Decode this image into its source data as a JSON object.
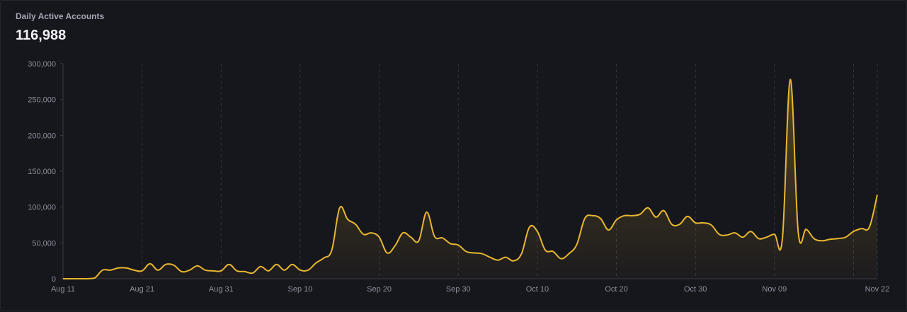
{
  "card": {
    "title": "Daily Active Accounts",
    "value": "116,988"
  },
  "colors": {
    "background": "#16161d",
    "line": "#e7b72e",
    "grid": "#33333f",
    "text": "#8c909b"
  },
  "chart_data": {
    "type": "area",
    "title": "Daily Active Accounts",
    "xlabel": "",
    "ylabel": "",
    "x_start": "Aug 11",
    "x_ticks": [
      "Aug 11",
      "Aug 21",
      "Aug 31",
      "Sep 10",
      "Sep 20",
      "Sep 30",
      "Oct 10",
      "Oct 20",
      "Oct 30",
      "Nov 09",
      "Nov 22"
    ],
    "y_ticks": [
      "0",
      "50,000",
      "100,000",
      "150,000",
      "200,000",
      "250,000",
      "300,000"
    ],
    "ylim": [
      0,
      300000
    ],
    "grid": "vertical dashed",
    "series": [
      {
        "values": [
          {
            "x": "Aug 11",
            "y": 0
          },
          {
            "x": "Aug 12",
            "y": 0
          },
          {
            "x": "Aug 13",
            "y": 0
          },
          {
            "x": "Aug 14",
            "y": 0
          },
          {
            "x": "Aug 15",
            "y": 1000
          },
          {
            "x": "Aug 16",
            "y": 12000
          },
          {
            "x": "Aug 17",
            "y": 12000
          },
          {
            "x": "Aug 18",
            "y": 15000
          },
          {
            "x": "Aug 19",
            "y": 15000
          },
          {
            "x": "Aug 20",
            "y": 12000
          },
          {
            "x": "Aug 21",
            "y": 11000
          },
          {
            "x": "Aug 22",
            "y": 21000
          },
          {
            "x": "Aug 23",
            "y": 12000
          },
          {
            "x": "Aug 24",
            "y": 20000
          },
          {
            "x": "Aug 25",
            "y": 19000
          },
          {
            "x": "Aug 26",
            "y": 10000
          },
          {
            "x": "Aug 27",
            "y": 12000
          },
          {
            "x": "Aug 28",
            "y": 18000
          },
          {
            "x": "Aug 29",
            "y": 12000
          },
          {
            "x": "Aug 30",
            "y": 11000
          },
          {
            "x": "Aug 31",
            "y": 11000
          },
          {
            "x": "Sep 1",
            "y": 20000
          },
          {
            "x": "Sep 2",
            "y": 11000
          },
          {
            "x": "Sep 3",
            "y": 10000
          },
          {
            "x": "Sep 4",
            "y": 8000
          },
          {
            "x": "Sep 5",
            "y": 17000
          },
          {
            "x": "Sep 6",
            "y": 11000
          },
          {
            "x": "Sep 7",
            "y": 20000
          },
          {
            "x": "Sep 8",
            "y": 12000
          },
          {
            "x": "Sep 9",
            "y": 20000
          },
          {
            "x": "Sep 10",
            "y": 12000
          },
          {
            "x": "Sep 11",
            "y": 12000
          },
          {
            "x": "Sep 12",
            "y": 22000
          },
          {
            "x": "Sep 13",
            "y": 29000
          },
          {
            "x": "Sep 14",
            "y": 40000
          },
          {
            "x": "Sep 15",
            "y": 99000
          },
          {
            "x": "Sep 16",
            "y": 83000
          },
          {
            "x": "Sep 17",
            "y": 76000
          },
          {
            "x": "Sep 18",
            "y": 62000
          },
          {
            "x": "Sep 19",
            "y": 64000
          },
          {
            "x": "Sep 20",
            "y": 58000
          },
          {
            "x": "Sep 21",
            "y": 36000
          },
          {
            "x": "Sep 22",
            "y": 46000
          },
          {
            "x": "Sep 23",
            "y": 64000
          },
          {
            "x": "Sep 24",
            "y": 58000
          },
          {
            "x": "Sep 25",
            "y": 53000
          },
          {
            "x": "Sep 26",
            "y": 93000
          },
          {
            "x": "Sep 27",
            "y": 59000
          },
          {
            "x": "Sep 28",
            "y": 57000
          },
          {
            "x": "Sep 29",
            "y": 49000
          },
          {
            "x": "Sep 30",
            "y": 47000
          },
          {
            "x": "Oct 1",
            "y": 38000
          },
          {
            "x": "Oct 2",
            "y": 36000
          },
          {
            "x": "Oct 3",
            "y": 35000
          },
          {
            "x": "Oct 4",
            "y": 30000
          },
          {
            "x": "Oct 5",
            "y": 26000
          },
          {
            "x": "Oct 6",
            "y": 30000
          },
          {
            "x": "Oct 7",
            "y": 25000
          },
          {
            "x": "Oct 8",
            "y": 35000
          },
          {
            "x": "Oct 9",
            "y": 72000
          },
          {
            "x": "Oct 10",
            "y": 66000
          },
          {
            "x": "Oct 11",
            "y": 40000
          },
          {
            "x": "Oct 12",
            "y": 38000
          },
          {
            "x": "Oct 13",
            "y": 28000
          },
          {
            "x": "Oct 14",
            "y": 35000
          },
          {
            "x": "Oct 15",
            "y": 48000
          },
          {
            "x": "Oct 16",
            "y": 84000
          },
          {
            "x": "Oct 17",
            "y": 88000
          },
          {
            "x": "Oct 18",
            "y": 84000
          },
          {
            "x": "Oct 19",
            "y": 68000
          },
          {
            "x": "Oct 20",
            "y": 82000
          },
          {
            "x": "Oct 21",
            "y": 88000
          },
          {
            "x": "Oct 22",
            "y": 88000
          },
          {
            "x": "Oct 23",
            "y": 90000
          },
          {
            "x": "Oct 24",
            "y": 99000
          },
          {
            "x": "Oct 25",
            "y": 86000
          },
          {
            "x": "Oct 26",
            "y": 95000
          },
          {
            "x": "Oct 27",
            "y": 76000
          },
          {
            "x": "Oct 28",
            "y": 76000
          },
          {
            "x": "Oct 29",
            "y": 87000
          },
          {
            "x": "Oct 30",
            "y": 78000
          },
          {
            "x": "Oct 31",
            "y": 78000
          },
          {
            "x": "Nov 1",
            "y": 75000
          },
          {
            "x": "Nov 2",
            "y": 62000
          },
          {
            "x": "Nov 3",
            "y": 61000
          },
          {
            "x": "Nov 4",
            "y": 64000
          },
          {
            "x": "Nov 5",
            "y": 58000
          },
          {
            "x": "Nov 6",
            "y": 66000
          },
          {
            "x": "Nov 7",
            "y": 56000
          },
          {
            "x": "Nov 8",
            "y": 58000
          },
          {
            "x": "Nov 9",
            "y": 62000
          },
          {
            "x": "Nov 10",
            "y": 56000
          },
          {
            "x": "Nov 11",
            "y": 278000
          },
          {
            "x": "Nov 12",
            "y": 65000
          },
          {
            "x": "Nov 13",
            "y": 69000
          },
          {
            "x": "Nov 14",
            "y": 56000
          },
          {
            "x": "Nov 15",
            "y": 53000
          },
          {
            "x": "Nov 16",
            "y": 55000
          },
          {
            "x": "Nov 17",
            "y": 56000
          },
          {
            "x": "Nov 18",
            "y": 58000
          },
          {
            "x": "Nov 19",
            "y": 66000
          },
          {
            "x": "Nov 20",
            "y": 70000
          },
          {
            "x": "Nov 21",
            "y": 72000
          },
          {
            "x": "Nov 22",
            "y": 116988
          }
        ]
      }
    ]
  }
}
